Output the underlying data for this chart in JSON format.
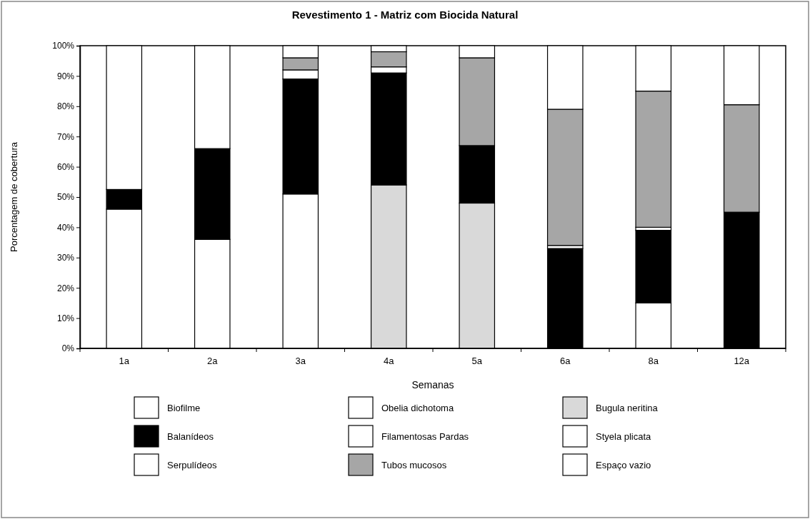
{
  "chart_data": {
    "type": "bar",
    "stacked": true,
    "title": "Revestimento 1 - Matriz com Biocida Natural",
    "xlabel": "Semanas",
    "ylabel": "Porcentagem de cobertura",
    "categories": [
      "1a",
      "2a",
      "3a",
      "4a",
      "5a",
      "6a",
      "8a",
      "12a"
    ],
    "ylim": [
      0,
      100
    ],
    "yticks": [
      {
        "value": 0,
        "label": "0%"
      },
      {
        "value": 10,
        "label": "10%"
      },
      {
        "value": 20,
        "label": "20%"
      },
      {
        "value": 30,
        "label": "30%"
      },
      {
        "value": 40,
        "label": "40%"
      },
      {
        "value": 50,
        "label": "50%"
      },
      {
        "value": 60,
        "label": "60%"
      },
      {
        "value": 70,
        "label": "70%"
      },
      {
        "value": 80,
        "label": "80%"
      },
      {
        "value": 90,
        "label": "90%"
      },
      {
        "value": 100,
        "label": "100%"
      }
    ],
    "grid": false,
    "legend": "bottom",
    "series": [
      {
        "name": "Biofilme",
        "color": "#ffffff",
        "values": [
          46,
          36,
          0,
          0,
          0,
          0,
          0,
          0
        ]
      },
      {
        "name": "Obelia dichotoma",
        "color": "#ffffff",
        "values": [
          0,
          0,
          51,
          0,
          0,
          0,
          15,
          0
        ]
      },
      {
        "name": "Bugula neritina",
        "color": "#d9d9d9",
        "values": [
          0,
          0,
          0,
          54,
          48,
          0,
          0,
          0
        ]
      },
      {
        "name": "Balanídeos",
        "color": "#000000",
        "values": [
          6.5,
          30,
          38,
          37,
          19,
          33,
          24,
          45
        ]
      },
      {
        "name": "Filamentosas Pardas",
        "color": "#ffffff",
        "values": [
          0,
          0,
          3,
          2,
          0,
          1,
          1,
          0
        ]
      },
      {
        "name": "Styela plicata",
        "color": "#ffffff",
        "values": [
          0,
          0,
          0,
          0,
          0,
          0,
          0,
          0
        ]
      },
      {
        "name": "Serpulídeos",
        "color": "#ffffff",
        "values": [
          0,
          0,
          0,
          0,
          0,
          0,
          0,
          0
        ]
      },
      {
        "name": "Tubos mucosos",
        "color": "#a6a6a6",
        "values": [
          0,
          0,
          4,
          5,
          29,
          45,
          45,
          35.5
        ]
      },
      {
        "name": "Espaço vazio",
        "color": "#ffffff",
        "values": [
          47.5,
          34,
          4,
          2,
          4,
          21,
          15,
          19.5
        ]
      }
    ]
  }
}
